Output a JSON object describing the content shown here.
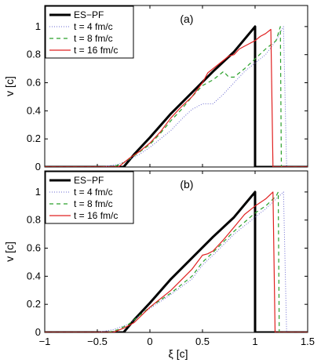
{
  "chart_data": [
    {
      "type": "line",
      "panel_label": "(a)",
      "xlabel": "",
      "ylabel": "v [c]",
      "xlim": [
        -1,
        1.5
      ],
      "ylim": [
        0,
        1.15
      ],
      "xticks": [
        -1,
        -0.5,
        0,
        0.5,
        1,
        1.5
      ],
      "yticks": [
        0,
        0.2,
        0.4,
        0.6,
        0.8,
        1
      ],
      "show_xtick_labels": false,
      "legend_position": "top-left",
      "series": [
        {
          "name": "ES−PF",
          "color": "#000000",
          "dash": "solid",
          "width": 3,
          "points": [
            [
              -1,
              0
            ],
            [
              -0.25,
              0
            ],
            [
              -0.15,
              0.09
            ],
            [
              0,
              0.21
            ],
            [
              0.2,
              0.38
            ],
            [
              0.4,
              0.53
            ],
            [
              0.6,
              0.68
            ],
            [
              0.8,
              0.82
            ],
            [
              1,
              1
            ],
            [
              1,
              0
            ],
            [
              1.5,
              0
            ]
          ]
        },
        {
          "name": "t = 4 fm/c",
          "color": "#6a6ad0",
          "dash": "1,2",
          "width": 1,
          "points": [
            [
              -1,
              0
            ],
            [
              -0.45,
              0
            ],
            [
              -0.3,
              0.02
            ],
            [
              -0.2,
              0.05
            ],
            [
              -0.1,
              0.09
            ],
            [
              0,
              0.14
            ],
            [
              0.2,
              0.26
            ],
            [
              0.3,
              0.34
            ],
            [
              0.4,
              0.41
            ],
            [
              0.5,
              0.45
            ],
            [
              0.6,
              0.45
            ],
            [
              0.7,
              0.52
            ],
            [
              0.8,
              0.6
            ],
            [
              0.9,
              0.68
            ],
            [
              1.0,
              0.74
            ],
            [
              1.1,
              0.8
            ],
            [
              1.2,
              0.9
            ],
            [
              1.27,
              1.0
            ],
            [
              1.3,
              0
            ],
            [
              1.5,
              0
            ]
          ]
        },
        {
          "name": "t = 8 fm/c",
          "color": "#2aa02a",
          "dash": "5,4",
          "width": 1.2,
          "points": [
            [
              -1,
              0
            ],
            [
              -0.35,
              0
            ],
            [
              -0.25,
              0.03
            ],
            [
              -0.15,
              0.08
            ],
            [
              0,
              0.16
            ],
            [
              0.1,
              0.24
            ],
            [
              0.2,
              0.33
            ],
            [
              0.3,
              0.41
            ],
            [
              0.4,
              0.5
            ],
            [
              0.5,
              0.58
            ],
            [
              0.6,
              0.62
            ],
            [
              0.7,
              0.68
            ],
            [
              0.75,
              0.64
            ],
            [
              0.8,
              0.64
            ],
            [
              0.9,
              0.7
            ],
            [
              1.0,
              0.77
            ],
            [
              1.1,
              0.84
            ],
            [
              1.2,
              0.9
            ],
            [
              1.24,
              1.0
            ],
            [
              1.25,
              0
            ],
            [
              1.5,
              0
            ]
          ]
        },
        {
          "name": "t = 16 fm/c",
          "color": "#e02020",
          "dash": "solid",
          "width": 1.2,
          "points": [
            [
              -1,
              0
            ],
            [
              -0.3,
              0
            ],
            [
              -0.2,
              0.06
            ],
            [
              -0.1,
              0.11
            ],
            [
              0,
              0.17
            ],
            [
              0.1,
              0.25
            ],
            [
              0.2,
              0.35
            ],
            [
              0.3,
              0.43
            ],
            [
              0.4,
              0.5
            ],
            [
              0.5,
              0.6
            ],
            [
              0.55,
              0.67
            ],
            [
              0.6,
              0.7
            ],
            [
              0.65,
              0.73
            ],
            [
              0.7,
              0.76
            ],
            [
              0.75,
              0.79
            ],
            [
              0.8,
              0.8
            ],
            [
              0.85,
              0.84
            ],
            [
              0.9,
              0.86
            ],
            [
              0.95,
              0.88
            ],
            [
              1.0,
              0.9
            ],
            [
              1.05,
              0.93
            ],
            [
              1.1,
              0.95
            ],
            [
              1.15,
              0.98
            ],
            [
              1.17,
              0
            ],
            [
              1.5,
              0
            ]
          ]
        }
      ]
    },
    {
      "type": "line",
      "panel_label": "(b)",
      "xlabel": "ξ [c]",
      "ylabel": "v [c]",
      "xlim": [
        -1,
        1.5
      ],
      "ylim": [
        0,
        1.15
      ],
      "xticks": [
        -1,
        -0.5,
        0,
        0.5,
        1,
        1.5
      ],
      "xtick_labels": [
        "−1",
        "−0.5",
        "0",
        "0.5",
        "1",
        "1.5"
      ],
      "yticks": [
        0,
        0.2,
        0.4,
        0.6,
        0.8,
        1
      ],
      "show_xtick_labels": true,
      "legend_position": "top-left",
      "series": [
        {
          "name": "ES−PF",
          "color": "#000000",
          "dash": "solid",
          "width": 3,
          "points": [
            [
              -1,
              0
            ],
            [
              -0.25,
              0
            ],
            [
              -0.15,
              0.09
            ],
            [
              0,
              0.21
            ],
            [
              0.2,
              0.38
            ],
            [
              0.4,
              0.53
            ],
            [
              0.6,
              0.68
            ],
            [
              0.8,
              0.82
            ],
            [
              1,
              1
            ],
            [
              1,
              0
            ],
            [
              1.5,
              0
            ]
          ]
        },
        {
          "name": "t = 4 fm/c",
          "color": "#6a6ad0",
          "dash": "1,2",
          "width": 1,
          "points": [
            [
              -1,
              0
            ],
            [
              -0.5,
              0
            ],
            [
              -0.35,
              0.02
            ],
            [
              -0.2,
              0.06
            ],
            [
              -0.1,
              0.12
            ],
            [
              0,
              0.17
            ],
            [
              0.2,
              0.27
            ],
            [
              0.4,
              0.38
            ],
            [
              0.5,
              0.48
            ],
            [
              0.6,
              0.55
            ],
            [
              0.8,
              0.7
            ],
            [
              1.0,
              0.82
            ],
            [
              1.1,
              0.88
            ],
            [
              1.2,
              0.95
            ],
            [
              1.27,
              1.0
            ],
            [
              1.3,
              0
            ],
            [
              1.5,
              0
            ]
          ]
        },
        {
          "name": "t = 8 fm/c",
          "color": "#2aa02a",
          "dash": "5,4",
          "width": 1.2,
          "points": [
            [
              -1,
              0
            ],
            [
              -0.4,
              0
            ],
            [
              -0.3,
              0.02
            ],
            [
              -0.2,
              0.06
            ],
            [
              -0.1,
              0.12
            ],
            [
              0,
              0.18
            ],
            [
              0.2,
              0.28
            ],
            [
              0.4,
              0.4
            ],
            [
              0.5,
              0.5
            ],
            [
              0.6,
              0.57
            ],
            [
              0.8,
              0.72
            ],
            [
              1.0,
              0.85
            ],
            [
              1.1,
              0.9
            ],
            [
              1.2,
              0.97
            ],
            [
              1.22,
              1.0
            ],
            [
              1.23,
              0
            ],
            [
              1.5,
              0
            ]
          ]
        },
        {
          "name": "t = 16 fm/c",
          "color": "#e02020",
          "dash": "solid",
          "width": 1.2,
          "points": [
            [
              -1,
              0
            ],
            [
              -0.35,
              0
            ],
            [
              -0.25,
              0.03
            ],
            [
              -0.15,
              0.07
            ],
            [
              0,
              0.18
            ],
            [
              0.2,
              0.3
            ],
            [
              0.4,
              0.45
            ],
            [
              0.5,
              0.55
            ],
            [
              0.55,
              0.56
            ],
            [
              0.6,
              0.58
            ],
            [
              0.7,
              0.66
            ],
            [
              0.8,
              0.75
            ],
            [
              0.9,
              0.84
            ],
            [
              1.0,
              0.9
            ],
            [
              1.1,
              0.95
            ],
            [
              1.17,
              1.0
            ],
            [
              1.19,
              0
            ],
            [
              1.5,
              0
            ]
          ]
        }
      ]
    }
  ]
}
